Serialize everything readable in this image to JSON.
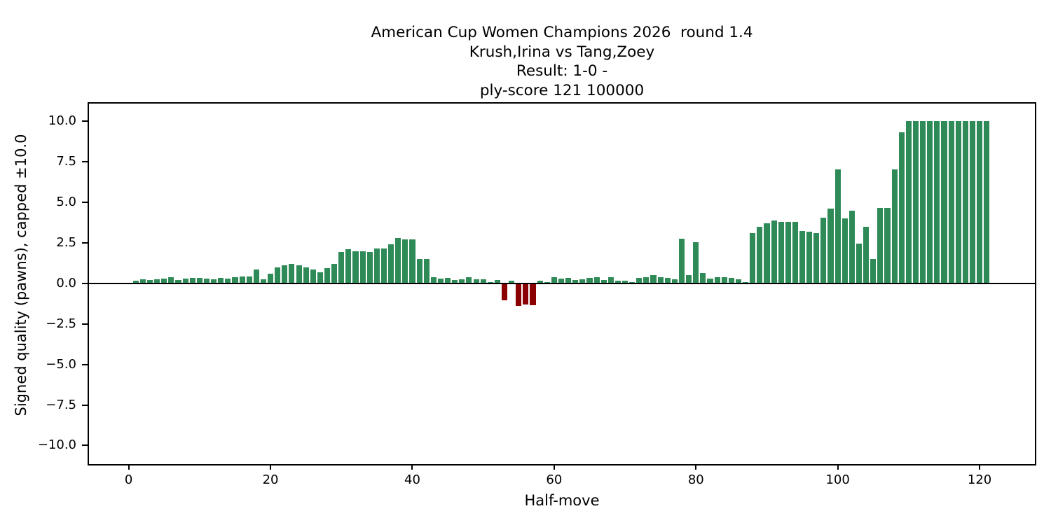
{
  "figure": {
    "title_lines": [
      "American Cup Women Champions 2026  round 1.4",
      "Krush,Irina vs Tang,Zoey",
      "Result: 1-0 -",
      "ply-score 121 100000"
    ],
    "xlabel": "Half-move",
    "ylabel": "Signed quality (pawns), capped ±10.0"
  },
  "chart_data": {
    "type": "bar",
    "title": "American Cup Women Champions 2026  round 1.4\nKrush,Irina vs Tang,Zoey\nResult: 1-0 -\nply-score 121 100000",
    "xlabel": "Half-move",
    "ylabel": "Signed quality (pawns), capped ±10.0",
    "grid": false,
    "legend": "none",
    "background": "#ffffff",
    "bar_color_positive": "#2e8b57",
    "bar_color_negative": "#8b0000",
    "bar_width_units": 0.8,
    "xlim": [
      -5.6,
      127.8
    ],
    "ylim": [
      -11.15,
      11.1
    ],
    "xticks": [
      0,
      20,
      40,
      60,
      80,
      100,
      120
    ],
    "yticks": [
      10.0,
      7.5,
      5.0,
      2.5,
      0.0,
      -2.5,
      -5.0,
      -7.5,
      -10.0
    ],
    "ytick_labels": [
      "10.0",
      "7.5",
      "5.0",
      "2.5",
      "0.0",
      "−2.5",
      "−5.0",
      "−7.5",
      "−10.0"
    ],
    "x": [
      1,
      2,
      3,
      4,
      5,
      6,
      7,
      8,
      9,
      10,
      11,
      12,
      13,
      14,
      15,
      16,
      17,
      18,
      19,
      20,
      21,
      22,
      23,
      24,
      25,
      26,
      27,
      28,
      29,
      30,
      31,
      32,
      33,
      34,
      35,
      36,
      37,
      38,
      39,
      40,
      41,
      42,
      43,
      44,
      45,
      46,
      47,
      48,
      49,
      50,
      51,
      52,
      53,
      54,
      55,
      56,
      57,
      58,
      59,
      60,
      61,
      62,
      63,
      64,
      65,
      66,
      67,
      68,
      69,
      70,
      71,
      72,
      73,
      74,
      75,
      76,
      77,
      78,
      79,
      80,
      81,
      82,
      83,
      84,
      85,
      86,
      87,
      88,
      89,
      90,
      91,
      92,
      93,
      94,
      95,
      96,
      97,
      98,
      99,
      100,
      101,
      102,
      103,
      104,
      105,
      106,
      107,
      108,
      109,
      110,
      111,
      112,
      113,
      114,
      115,
      116,
      117,
      118,
      119,
      120,
      121
    ],
    "values": [
      0.15,
      0.25,
      0.2,
      0.25,
      0.3,
      0.4,
      0.2,
      0.3,
      0.35,
      0.35,
      0.3,
      0.25,
      0.35,
      0.3,
      0.4,
      0.45,
      0.45,
      0.85,
      0.25,
      0.6,
      1.0,
      1.1,
      1.2,
      1.1,
      1.0,
      0.85,
      0.7,
      0.95,
      1.2,
      1.95,
      2.1,
      2.0,
      2.0,
      1.95,
      2.15,
      2.15,
      2.4,
      2.8,
      2.7,
      2.7,
      1.5,
      1.5,
      0.4,
      0.3,
      0.35,
      0.2,
      0.27,
      0.4,
      0.25,
      0.25,
      0.1,
      0.2,
      -1.0,
      0.15,
      -1.35,
      -1.25,
      -1.3,
      0.15,
      0.1,
      0.4,
      0.3,
      0.35,
      0.2,
      0.25,
      0.35,
      0.4,
      0.2,
      0.4,
      0.15,
      0.17,
      0.07,
      0.35,
      0.38,
      0.5,
      0.4,
      0.35,
      0.25,
      2.75,
      0.5,
      2.55,
      0.65,
      0.3,
      0.4,
      0.4,
      0.35,
      0.25,
      0.1,
      3.1,
      3.5,
      3.7,
      3.9,
      3.8,
      3.8,
      3.8,
      3.25,
      3.2,
      3.1,
      4.05,
      4.6,
      7.05,
      4.0,
      4.5,
      2.45,
      3.5,
      1.5,
      4.65,
      4.65,
      7.05,
      9.35,
      10.0,
      10.0,
      10.0,
      10.0,
      10.0,
      10.0,
      10.0,
      10.0,
      10.0,
      10.0,
      10.0,
      10.0
    ]
  }
}
